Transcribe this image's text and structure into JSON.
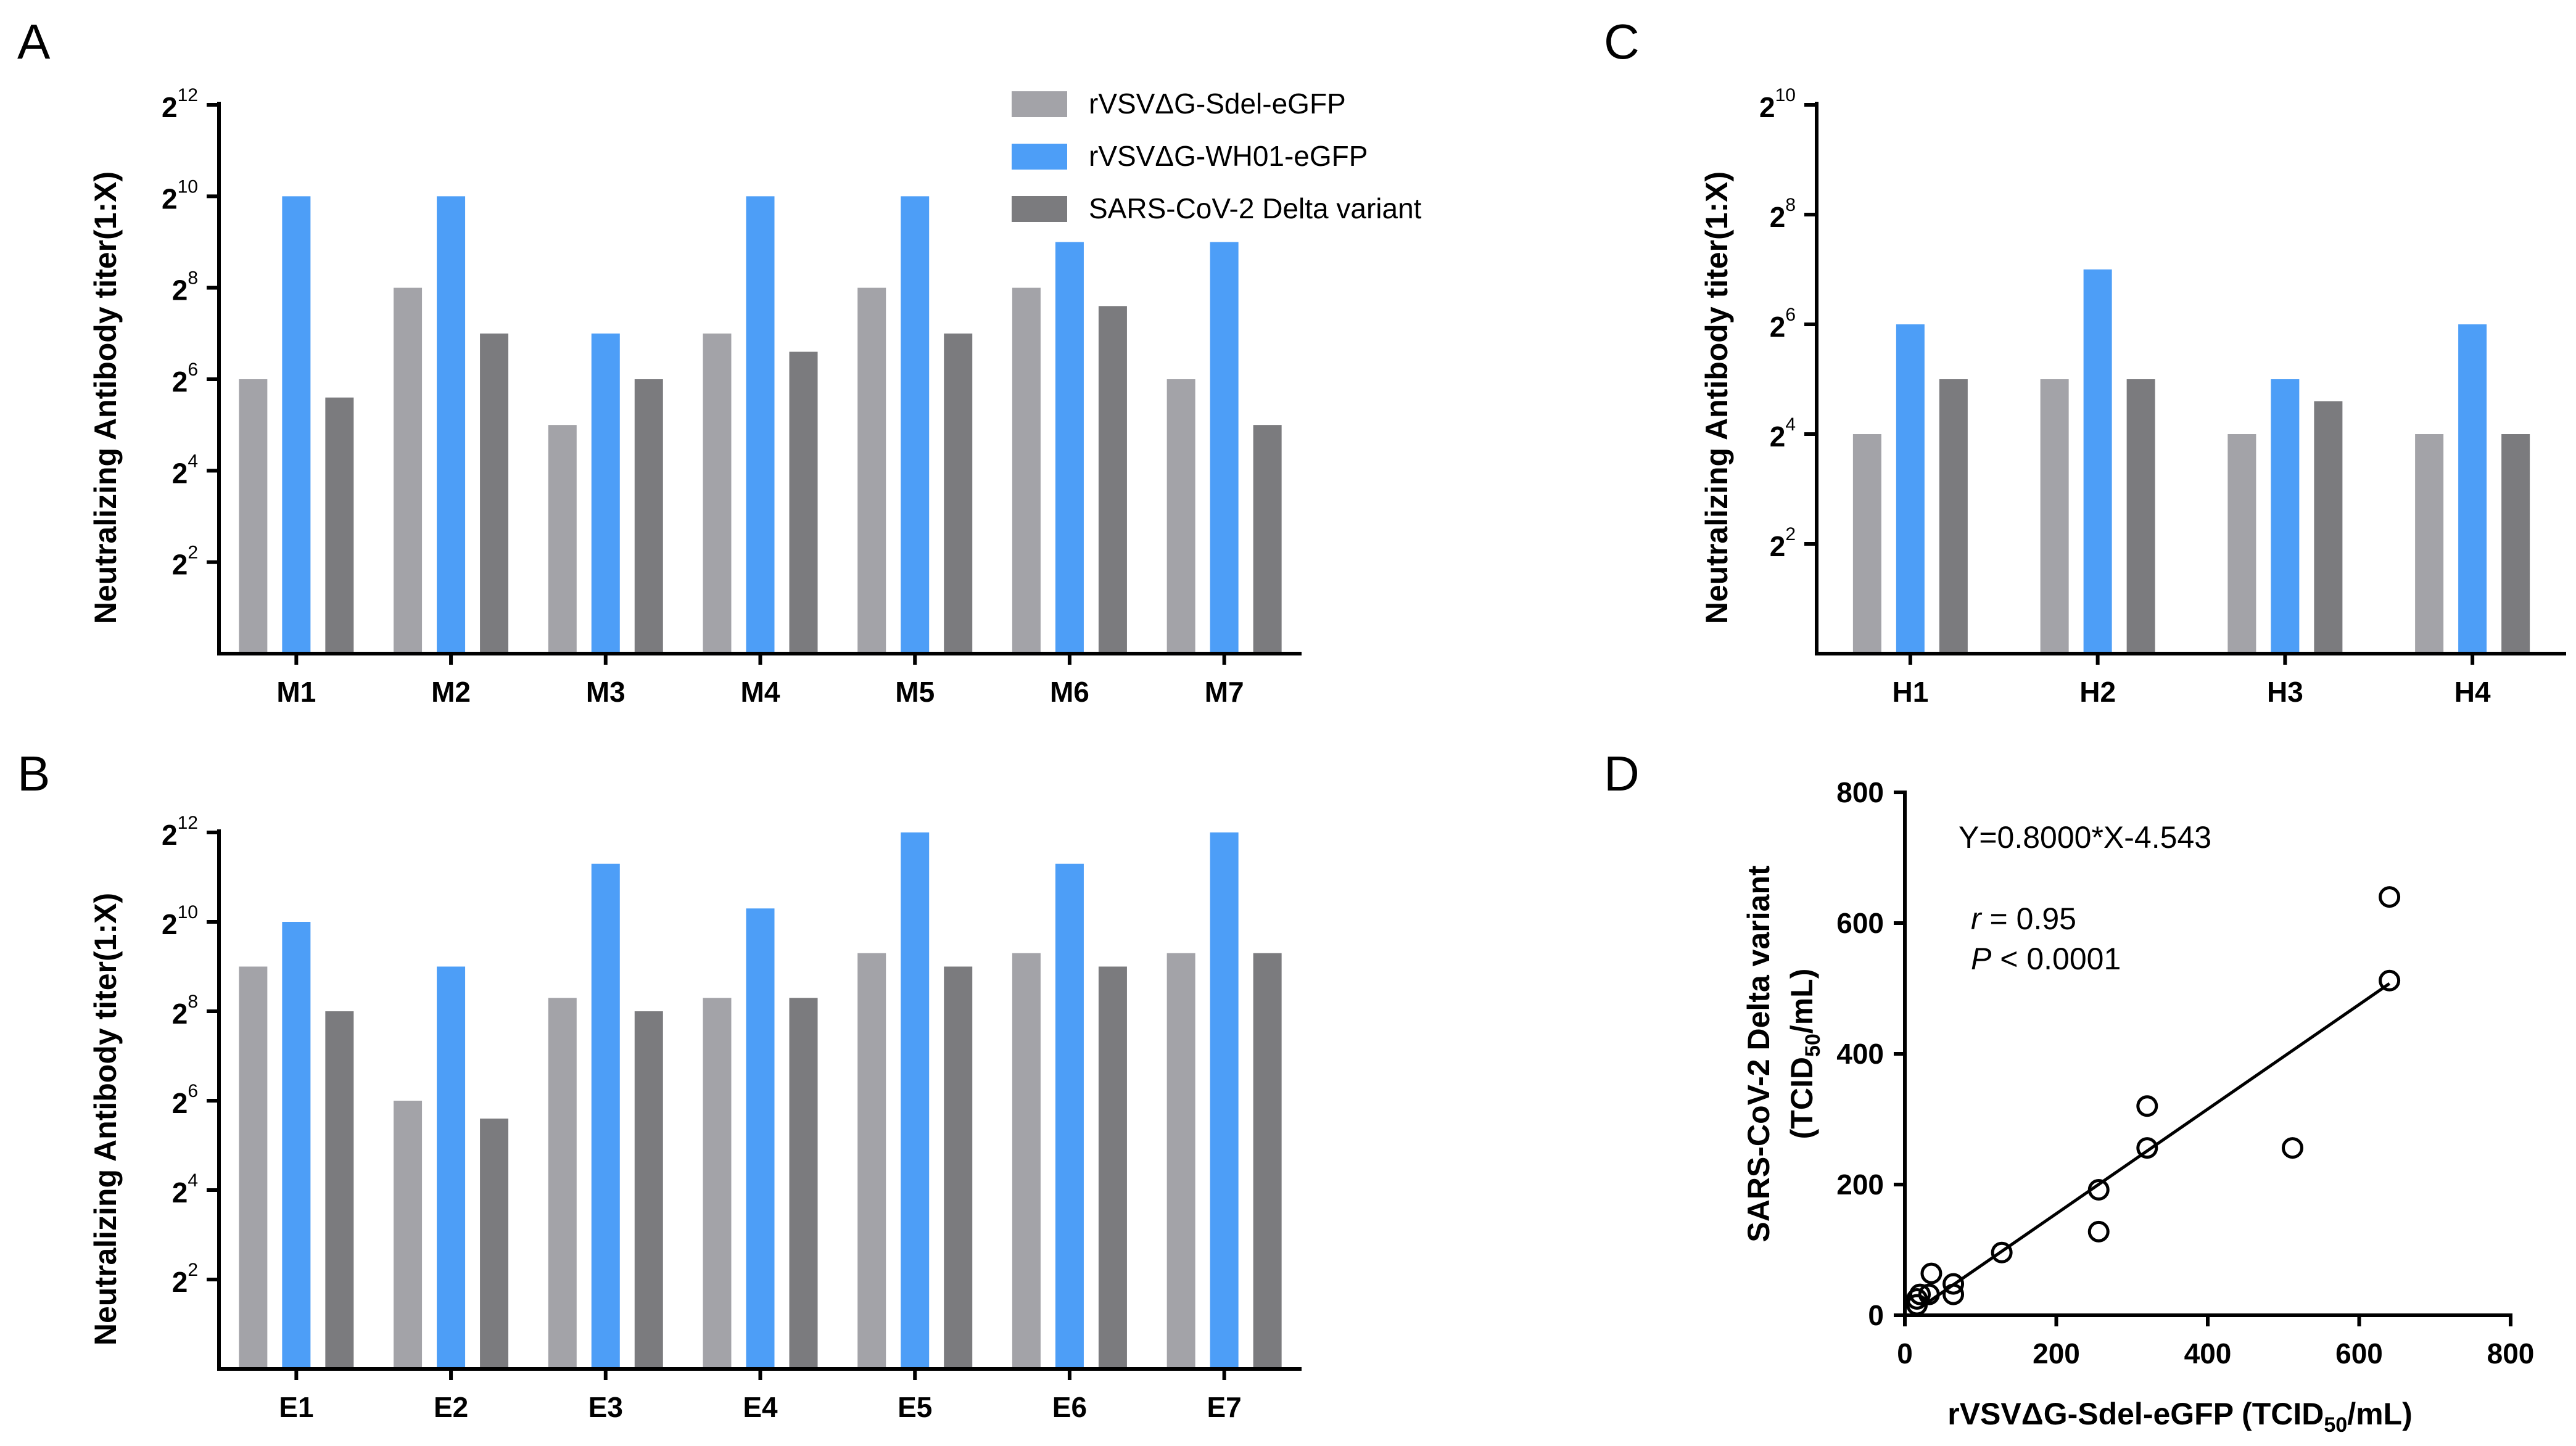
{
  "chart_data": [
    {
      "panel": "A",
      "type": "bar",
      "ylabel": "Neutralizing Antibody titer(1:X)",
      "y_scale": "log2",
      "ylim_exp": [
        0,
        12
      ],
      "yticks": [
        {
          "base": "2",
          "exp": "2"
        },
        {
          "base": "2",
          "exp": "4"
        },
        {
          "base": "2",
          "exp": "6"
        },
        {
          "base": "2",
          "exp": "8"
        },
        {
          "base": "2",
          "exp": "10"
        },
        {
          "base": "2",
          "exp": "12"
        }
      ],
      "categories": [
        "M1",
        "M2",
        "M3",
        "M4",
        "M5",
        "M6",
        "M7"
      ],
      "series": [
        {
          "name": "rVSVΔG-Sdel-eGFP",
          "color": "#a3a3a8",
          "values_log2": [
            6,
            8,
            5,
            7,
            8,
            8,
            6
          ]
        },
        {
          "name": "rVSVΔG-WH01-eGFP",
          "color": "#4d9ef7",
          "values_log2": [
            10,
            10,
            7,
            10,
            10,
            9,
            9
          ]
        },
        {
          "name": "SARS-CoV-2 Delta variant",
          "color": "#7b7b7e",
          "values_log2": [
            5.6,
            7,
            6,
            6.6,
            7,
            7.6,
            5
          ]
        }
      ],
      "legend": "top-right"
    },
    {
      "panel": "B",
      "type": "bar",
      "ylabel": "Neutralizing Antibody titer(1:X)",
      "y_scale": "log2",
      "ylim_exp": [
        0,
        12
      ],
      "yticks": [
        {
          "base": "2",
          "exp": "2"
        },
        {
          "base": "2",
          "exp": "4"
        },
        {
          "base": "2",
          "exp": "6"
        },
        {
          "base": "2",
          "exp": "8"
        },
        {
          "base": "2",
          "exp": "10"
        },
        {
          "base": "2",
          "exp": "12"
        }
      ],
      "categories": [
        "E1",
        "E2",
        "E3",
        "E4",
        "E5",
        "E6",
        "E7"
      ],
      "series": [
        {
          "name": "rVSVΔG-Sdel-eGFP",
          "color": "#a3a3a8",
          "values_log2": [
            9,
            6,
            8.3,
            8.3,
            9.3,
            9.3,
            9.3
          ]
        },
        {
          "name": "rVSVΔG-WH01-eGFP",
          "color": "#4d9ef7",
          "values_log2": [
            10,
            9,
            11.3,
            10.3,
            12,
            11.3,
            12
          ]
        },
        {
          "name": "SARS-CoV-2 Delta variant",
          "color": "#7b7b7e",
          "values_log2": [
            8,
            5.6,
            8,
            8.3,
            9,
            9,
            9.3
          ]
        }
      ]
    },
    {
      "panel": "C",
      "type": "bar",
      "ylabel": "Neutralizing Antibody titer(1:X)",
      "y_scale": "log2",
      "ylim_exp": [
        0,
        10
      ],
      "yticks": [
        {
          "base": "2",
          "exp": "2"
        },
        {
          "base": "2",
          "exp": "4"
        },
        {
          "base": "2",
          "exp": "6"
        },
        {
          "base": "2",
          "exp": "8"
        },
        {
          "base": "2",
          "exp": "10"
        }
      ],
      "categories": [
        "H1",
        "H2",
        "H3",
        "H4"
      ],
      "series": [
        {
          "name": "rVSVΔG-Sdel-eGFP",
          "color": "#a3a3a8",
          "values_log2": [
            4,
            5,
            4,
            4
          ]
        },
        {
          "name": "rVSVΔG-WH01-eGFP",
          "color": "#4d9ef7",
          "values_log2": [
            6,
            7,
            5,
            6
          ]
        },
        {
          "name": "SARS-CoV-2 Delta variant",
          "color": "#7b7b7e",
          "values_log2": [
            5,
            5,
            4.6,
            4
          ]
        }
      ]
    },
    {
      "panel": "D",
      "type": "scatter",
      "xlabel": "rVSVΔG-Sdel-eGFP (TCID",
      "xlabel_sub": "50",
      "xlabel_tail": "/mL)",
      "ylabel_line1": "SARS-CoV-2 Delta variant",
      "ylabel_line2": "(TCID",
      "ylabel_sub": "50",
      "ylabel_tail": "/mL)",
      "xlim": [
        0,
        800
      ],
      "ylim": [
        0,
        800
      ],
      "xticks": [
        "0",
        "200",
        "400",
        "600",
        "800"
      ],
      "yticks": [
        "0",
        "200",
        "400",
        "600",
        "800"
      ],
      "points": [
        {
          "x": 16,
          "y": 16
        },
        {
          "x": 16,
          "y": 25
        },
        {
          "x": 20,
          "y": 32
        },
        {
          "x": 32,
          "y": 32
        },
        {
          "x": 35,
          "y": 64
        },
        {
          "x": 64,
          "y": 32
        },
        {
          "x": 64,
          "y": 48
        },
        {
          "x": 128,
          "y": 96
        },
        {
          "x": 256,
          "y": 192
        },
        {
          "x": 256,
          "y": 128
        },
        {
          "x": 320,
          "y": 256
        },
        {
          "x": 320,
          "y": 320
        },
        {
          "x": 512,
          "y": 256
        },
        {
          "x": 640,
          "y": 640
        },
        {
          "x": 640,
          "y": 512
        }
      ],
      "fit": {
        "slope": 0.8,
        "intercept": -4.543,
        "x_range": [
          20,
          640
        ]
      },
      "equation": "Y=0.8000*X-4.543",
      "r_label": "r",
      "r_value": " = 0.95",
      "p_label": "P",
      "p_value": " < 0.0001"
    }
  ]
}
